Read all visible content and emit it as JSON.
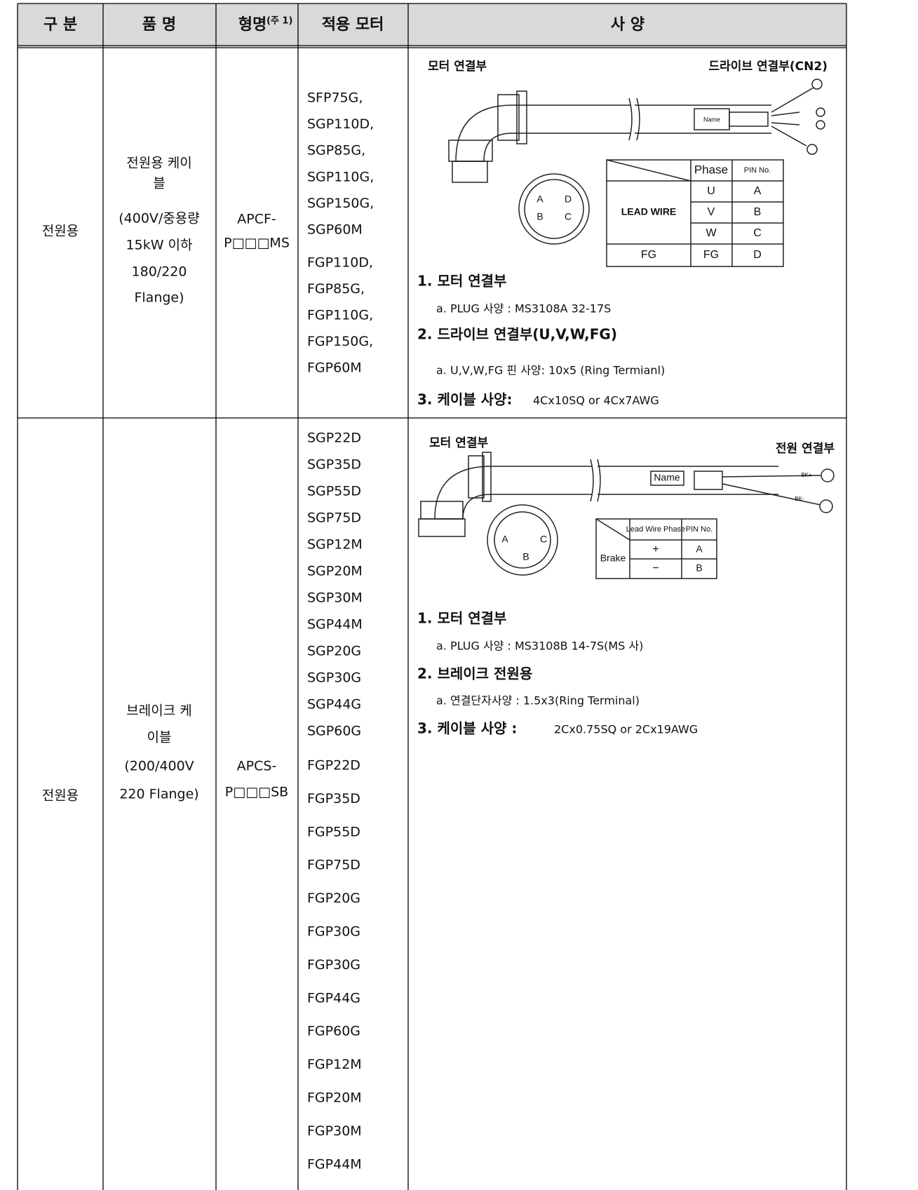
{
  "table": {
    "header": [
      "구 분",
      "품 명",
      "형명",
      "적용 모터",
      "사 양"
    ],
    "header_note": "(주 1)",
    "rows": [
      {
        "category": "전원용",
        "product": [
          "전원용 케이",
          "블",
          "(400V/중용량",
          "15kW 이하",
          "180/220",
          "Flange)"
        ],
        "model": [
          "APCF-",
          "P□□□MS"
        ],
        "motors": [
          [
            "SFP75G,",
            "SGP110D,",
            "SGP85G,",
            "SGP110G,",
            "SGP150G,",
            "SGP60M"
          ],
          [
            "FGP110D,",
            "FGP85G,",
            "FGP110G,",
            "FGP150G,",
            "FGP60M"
          ]
        ],
        "diagram": {
          "left_label": "모터 연결부",
          "right_label": "드라이브 연결부(CN2)",
          "name_tag": "Name",
          "pins": [
            "A",
            "D",
            "B",
            "C"
          ],
          "pin_table": {
            "phase": "Phase",
            "pin_no": "PIN No.",
            "lead": "LEAD WIRE",
            "rows": [
              [
                "U",
                "A"
              ],
              [
                "V",
                "B"
              ],
              [
                "W",
                "C"
              ]
            ],
            "fg": [
              "FG",
              "FG",
              "D"
            ]
          }
        },
        "spec": [
          {
            "heading": "1. 모터 연결부",
            "detail": "a. PLUG 사양 : MS3108A 32-17S"
          },
          {
            "heading": "2. 드라이브 연결부(U,V,W,FG)",
            "detail": "a. U,V,W,FG 핀 사양: 10x5 (Ring Termianl)"
          },
          {
            "heading": "3. 케이블 사양:",
            "detail": "4Cx10SQ or 4Cx7AWG"
          }
        ]
      },
      {
        "category": "전원용",
        "product": [
          "브레이크 케",
          "이블",
          "(200/400V",
          "220 Flange)"
        ],
        "model": [
          "APCS-",
          "P□□□SB"
        ],
        "motors": [
          [
            "SGP22D",
            "SGP35D",
            "SGP55D",
            "SGP75D",
            "SGP12M",
            "SGP20M",
            "SGP30M",
            "SGP44M",
            "SGP20G",
            "SGP30G",
            "SGP44G",
            "SGP60G"
          ],
          [
            "FGP22D",
            "FGP35D",
            "FGP55D",
            "FGP75D",
            "FGP20G",
            "FGP30G",
            "FGP30G",
            "FGP44G",
            "FGP60G",
            "FGP12M",
            "FGP20M",
            "FGP30M",
            "FGP44M"
          ]
        ],
        "diagram": {
          "left_label": "모터 연결부",
          "right_label": "전원 연결부",
          "name_tag": "Name",
          "wire_tags": [
            "BK+",
            "BK-"
          ],
          "pins": [
            "A",
            "C",
            "B"
          ],
          "pin_table": {
            "phase": "Lead Wire Phase",
            "pin_no": "PIN No.",
            "lead": "Brake",
            "rows": [
              [
                "+",
                "A"
              ],
              [
                "−",
                "B"
              ]
            ]
          }
        },
        "spec": [
          {
            "heading": "1. 모터 연결부",
            "detail": "a. PLUG 사양 : MS3108B 14-7S(MS 사)"
          },
          {
            "heading": "2. 브레이크 전원용",
            "detail": "a. 연결단자사양 : 1.5x3(Ring Terminal)"
          },
          {
            "heading": "3. 케이블 사양 :",
            "detail": "2Cx0.75SQ or 2Cx19AWG"
          }
        ]
      }
    ]
  }
}
